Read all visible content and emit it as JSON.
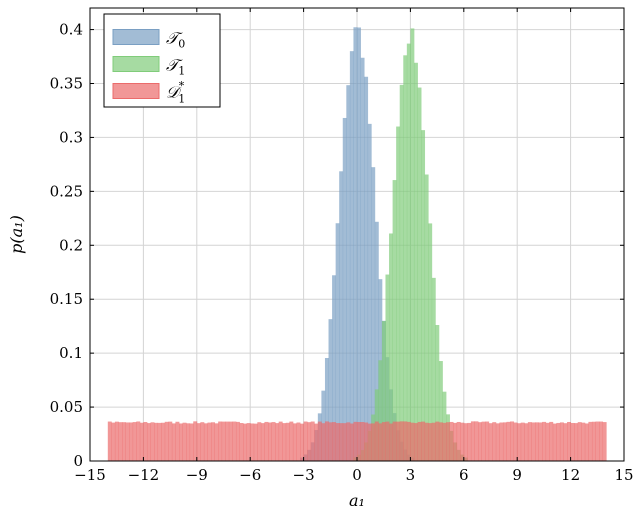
{
  "chart_data": {
    "type": "histogram",
    "xlabel": "a₁",
    "ylabel": "p(a₁)",
    "xlim": [
      -15,
      15
    ],
    "ylim": [
      0,
      0.42
    ],
    "xticks": [
      -15,
      -12,
      -9,
      -6,
      -3,
      0,
      3,
      6,
      9,
      12,
      15
    ],
    "xtick_labels": [
      "−15",
      "−12",
      "−9",
      "−6",
      "−3",
      "0",
      "3",
      "6",
      "9",
      "12",
      "15"
    ],
    "yticks": [
      0,
      0.05,
      0.1,
      0.15,
      0.2,
      0.25,
      0.3,
      0.35,
      0.4
    ],
    "ytick_labels": [
      "0",
      "0.05",
      "0.1",
      "0.15",
      "0.2",
      "0.25",
      "0.3",
      "0.35",
      "0.4"
    ],
    "grid": true,
    "legend_position": "top-left",
    "bin_width": 0.2,
    "series": [
      {
        "name": "𝒯₀",
        "legend_main": "𝒯",
        "legend_sub": "0",
        "legend_sup": "",
        "color": "#7a9fc3",
        "range": [
          -3.2,
          3.2
        ],
        "center": 0,
        "peak": 0.4
      },
      {
        "name": "𝒯₁",
        "legend_main": "𝒯",
        "legend_sub": "1",
        "legend_sup": "",
        "color": "#80cc7a",
        "range": [
          -0.2,
          6.2
        ],
        "center": 3,
        "peak": 0.395
      },
      {
        "name": "𝒟₁*",
        "legend_main": "𝒟",
        "legend_sub": "1",
        "legend_sup": "*",
        "color": "#eb6b6b",
        "range": [
          -14,
          14
        ],
        "uniform_value": 0.0357
      }
    ]
  }
}
